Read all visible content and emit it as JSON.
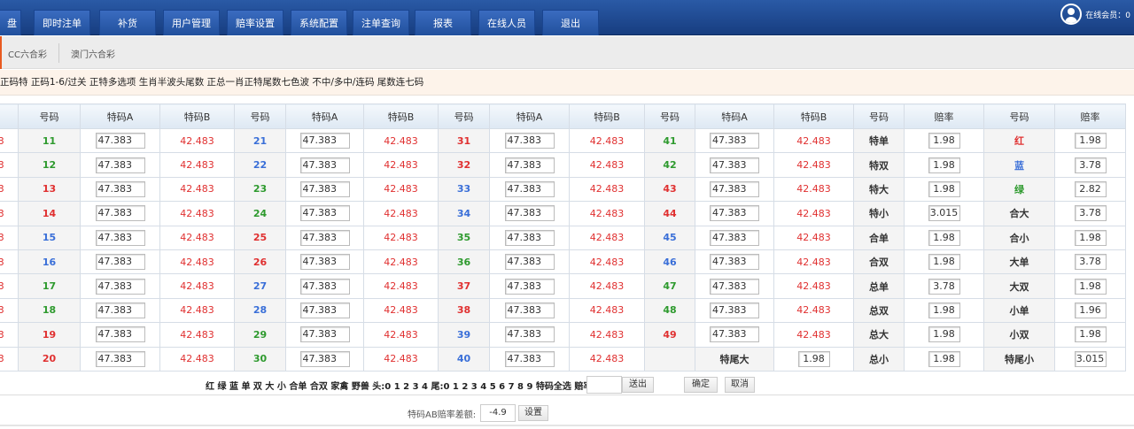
{
  "nav": {
    "items": [
      "盘",
      "即时注单",
      "补货",
      "用户管理",
      "赔率设置",
      "系统配置",
      "注单查询",
      "报表",
      "在线人员",
      "退出"
    ],
    "online_label": "在线会员：0"
  },
  "tabs": [
    "CC六合彩",
    "澳门六合彩"
  ],
  "notice": "正码特 正码1-6/过关 正特多选项 生肖半波头尾数 正总一肖正特尾数七色波 不中/多中/连码 尾数连七码",
  "headers": [
    "特码B",
    "号码",
    "特码A",
    "特码B",
    "号码",
    "特码A",
    "特码B",
    "号码",
    "特码A",
    "特码B",
    "号码",
    "特码A",
    "特码B",
    "号码",
    "赔率",
    "号码",
    "赔率"
  ],
  "odds_a": "47.383",
  "odds_b": "42.483",
  "colors": {
    "red": "#e03030",
    "green": "#2e9a2e",
    "blue": "#3a6fd8"
  },
  "number_columns": [
    [
      [
        "11",
        "green"
      ],
      [
        "12",
        "green"
      ],
      [
        "13",
        "red"
      ],
      [
        "14",
        "red"
      ],
      [
        "15",
        "blue"
      ],
      [
        "16",
        "blue"
      ],
      [
        "17",
        "green"
      ],
      [
        "18",
        "green"
      ],
      [
        "19",
        "red"
      ],
      [
        "20",
        "red"
      ]
    ],
    [
      [
        "21",
        "blue"
      ],
      [
        "22",
        "blue"
      ],
      [
        "23",
        "green"
      ],
      [
        "24",
        "green"
      ],
      [
        "25",
        "red"
      ],
      [
        "26",
        "red"
      ],
      [
        "27",
        "blue"
      ],
      [
        "28",
        "blue"
      ],
      [
        "29",
        "green"
      ],
      [
        "30",
        "green"
      ]
    ],
    [
      [
        "31",
        "red"
      ],
      [
        "32",
        "red"
      ],
      [
        "33",
        "blue"
      ],
      [
        "34",
        "blue"
      ],
      [
        "35",
        "green"
      ],
      [
        "36",
        "green"
      ],
      [
        "37",
        "red"
      ],
      [
        "38",
        "red"
      ],
      [
        "39",
        "blue"
      ],
      [
        "40",
        "blue"
      ]
    ],
    [
      [
        "41",
        "green"
      ],
      [
        "42",
        "green"
      ],
      [
        "43",
        "red"
      ],
      [
        "44",
        "red"
      ],
      [
        "45",
        "blue"
      ],
      [
        "46",
        "blue"
      ],
      [
        "47",
        "green"
      ],
      [
        "48",
        "green"
      ],
      [
        "49",
        "red"
      ]
    ]
  ],
  "extra_row": {
    "label": "特尾大",
    "value": "1.98"
  },
  "col5": [
    [
      "特单",
      "1.98"
    ],
    [
      "特双",
      "1.98"
    ],
    [
      "特大",
      "1.98"
    ],
    [
      "特小",
      "3.015"
    ],
    [
      "合单",
      "1.98"
    ],
    [
      "合双",
      "1.98"
    ],
    [
      "总单",
      "3.78"
    ],
    [
      "总双",
      "1.98"
    ],
    [
      "总大",
      "1.98"
    ],
    [
      "总小",
      "1.98"
    ]
  ],
  "col6": [
    [
      "红",
      "1.98",
      "red"
    ],
    [
      "蓝",
      "3.78",
      "blue"
    ],
    [
      "绿",
      "2.82",
      "green"
    ],
    [
      "合大",
      "3.78",
      ""
    ],
    [
      "合小",
      "1.98",
      ""
    ],
    [
      "大单",
      "3.78",
      ""
    ],
    [
      "大双",
      "1.98",
      ""
    ],
    [
      "小单",
      "1.96",
      ""
    ],
    [
      "小双",
      "1.98",
      ""
    ],
    [
      "特尾小",
      "3.015",
      ""
    ]
  ],
  "quick": {
    "text": "红 绿 蓝 单 双 大 小 合单 合双 家禽 野兽 头:0 1 2 3 4 尾:0 1 2 3 4 5 6 7 8 9 特码全选 赔率:",
    "send": "送出",
    "confirm": "确定",
    "cancel": "取消"
  },
  "diff": {
    "label": "特码AB赔率差额:",
    "value": "-4.9",
    "set": "设置"
  }
}
